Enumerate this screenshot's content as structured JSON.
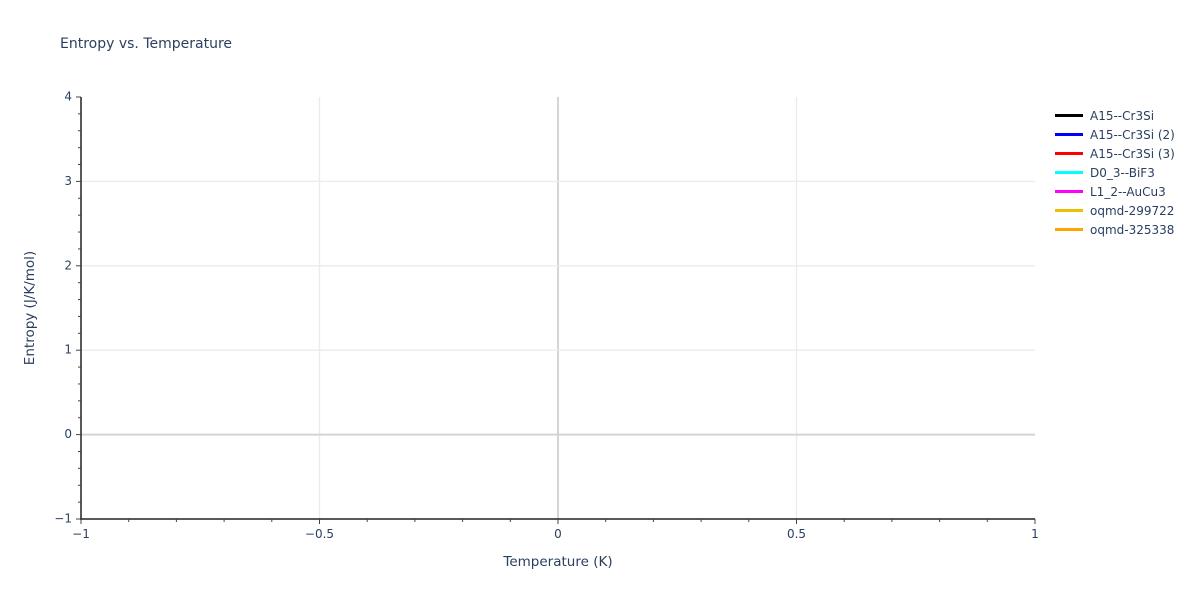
{
  "page": {
    "background": "#ffffff"
  },
  "colors": {
    "text": "#2a3f5f",
    "axis_line": "#222222",
    "tick": "#444444",
    "gridline": "#ebebeb",
    "zeroline": "#d4d4d4",
    "plot_background": "#ffffff"
  },
  "chart_data": {
    "type": "line",
    "title": "Entropy vs. Temperature",
    "xlabel": "Temperature (K)",
    "ylabel": "Entropy (J/K/mol)",
    "xlim": [
      -1,
      1
    ],
    "ylim": [
      -1,
      4
    ],
    "x_tick_values": [
      -1,
      -0.5,
      0,
      0.5,
      1
    ],
    "x_tick_labels": [
      "−1",
      "−0.5",
      "0",
      "0.5",
      "1"
    ],
    "y_tick_values": [
      -1,
      0,
      1,
      2,
      3,
      4
    ],
    "y_tick_labels": [
      "−1",
      "0",
      "1",
      "2",
      "3",
      "4"
    ],
    "x_minor_tick_step": 0.1,
    "y_minor_tick_step": 0.2,
    "x_gridline_values": [
      -0.5,
      0,
      0.5
    ],
    "y_gridline_values": [
      0,
      1,
      2,
      3
    ],
    "x_zeroline_value": 0,
    "y_zeroline_value": 0,
    "grid": true,
    "legend_position": "outside-top-right",
    "series": [
      {
        "name": "A15--Cr3Si",
        "color": "#000000",
        "x": [],
        "y": []
      },
      {
        "name": "A15--Cr3Si (2)",
        "color": "#0000ff",
        "x": [],
        "y": []
      },
      {
        "name": "A15--Cr3Si (3)",
        "color": "#ff0000",
        "x": [],
        "y": []
      },
      {
        "name": "D0_3--BiF3",
        "color": "#00ffff",
        "x": [],
        "y": []
      },
      {
        "name": "L1_2--AuCu3",
        "color": "#ff00ff",
        "x": [],
        "y": []
      },
      {
        "name": "oqmd-299722",
        "color": "#ecc000",
        "x": [],
        "y": []
      },
      {
        "name": "oqmd-325338",
        "color": "#ffa500",
        "x": [],
        "y": []
      }
    ]
  }
}
